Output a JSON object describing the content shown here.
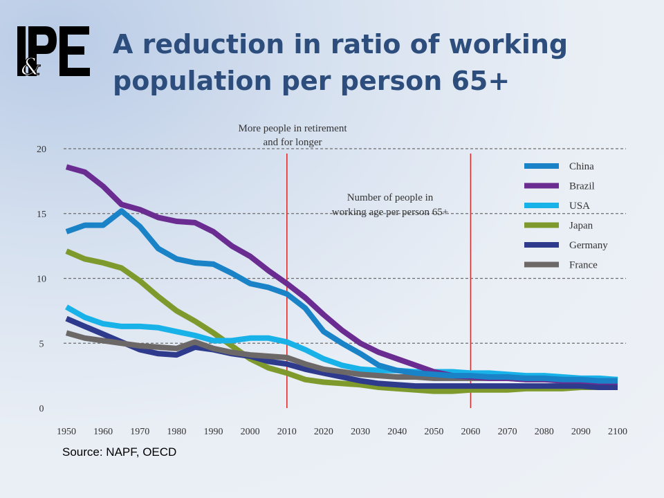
{
  "header": {
    "logo_text": "IPE",
    "logo_amp": "&",
    "title_line1": "A reduction in ratio of working",
    "title_line2": "population per person 65+"
  },
  "footer": {
    "source": "Source: NAPF, OECD"
  },
  "chart_data": {
    "type": "line",
    "x": [
      1950,
      1955,
      1960,
      1965,
      1970,
      1975,
      1980,
      1985,
      1990,
      1995,
      2000,
      2005,
      2010,
      2015,
      2020,
      2025,
      2030,
      2035,
      2040,
      2045,
      2050,
      2055,
      2060,
      2065,
      2070,
      2075,
      2080,
      2085,
      2090,
      2095,
      2100
    ],
    "x_ticks": [
      1950,
      1960,
      1970,
      1980,
      1990,
      2000,
      2010,
      2020,
      2030,
      2040,
      2050,
      2060,
      2070,
      2080,
      2090,
      2100
    ],
    "y_ticks": [
      0,
      5,
      10,
      15,
      20
    ],
    "xlim": [
      1950,
      2100
    ],
    "ylim": [
      0,
      20
    ],
    "grid": "horizontal-dashed",
    "legend_position": "right",
    "annotations": [
      {
        "text_line1": "More people in retirement",
        "text_line2": "and for longer"
      },
      {
        "text_line1": "Number of people in",
        "text_line2": "working age per person 65+"
      }
    ],
    "reference_lines": [
      2010,
      2060
    ],
    "reference_color": "#d32f2f",
    "series": [
      {
        "name": "China",
        "color": "#1a82c6",
        "values": [
          13.6,
          14.1,
          14.1,
          15.2,
          14.0,
          12.3,
          11.5,
          11.2,
          11.1,
          10.4,
          9.6,
          9.3,
          8.8,
          7.7,
          5.9,
          5.0,
          4.2,
          3.3,
          2.9,
          2.7,
          2.6,
          2.5,
          2.5,
          2.4,
          2.4,
          2.3,
          2.3,
          2.2,
          2.2,
          2.1,
          2.1
        ]
      },
      {
        "name": "Brazil",
        "color": "#6a2c91",
        "values": [
          18.6,
          18.2,
          17.1,
          15.7,
          15.3,
          14.7,
          14.4,
          14.3,
          13.6,
          12.5,
          11.7,
          10.6,
          9.6,
          8.5,
          7.2,
          6.0,
          5.0,
          4.3,
          3.8,
          3.3,
          2.8,
          2.5,
          2.4,
          2.3,
          2.3,
          2.2,
          2.2,
          2.1,
          2.1,
          2.0,
          2.0
        ]
      },
      {
        "name": "USA",
        "color": "#19b2e8",
        "values": [
          7.8,
          7.0,
          6.5,
          6.3,
          6.3,
          6.2,
          5.9,
          5.6,
          5.2,
          5.2,
          5.4,
          5.4,
          5.1,
          4.5,
          3.8,
          3.3,
          3.0,
          2.9,
          2.9,
          2.8,
          2.8,
          2.8,
          2.7,
          2.7,
          2.6,
          2.5,
          2.5,
          2.4,
          2.3,
          2.3,
          2.2
        ]
      },
      {
        "name": "Japan",
        "color": "#7f9a2c",
        "values": [
          12.1,
          11.5,
          11.2,
          10.8,
          9.8,
          8.6,
          7.5,
          6.7,
          5.8,
          4.8,
          3.8,
          3.1,
          2.7,
          2.2,
          2.0,
          1.9,
          1.8,
          1.6,
          1.5,
          1.4,
          1.3,
          1.3,
          1.4,
          1.4,
          1.4,
          1.5,
          1.5,
          1.5,
          1.6,
          1.6,
          1.6
        ]
      },
      {
        "name": "Germany",
        "color": "#2e3a8c",
        "values": [
          6.9,
          6.3,
          5.7,
          5.1,
          4.5,
          4.2,
          4.1,
          4.7,
          4.5,
          4.2,
          4.0,
          3.6,
          3.4,
          3.0,
          2.7,
          2.4,
          2.1,
          1.9,
          1.8,
          1.7,
          1.7,
          1.7,
          1.7,
          1.7,
          1.7,
          1.7,
          1.7,
          1.7,
          1.7,
          1.6,
          1.6
        ]
      },
      {
        "name": "France",
        "color": "#6d6868",
        "values": [
          5.8,
          5.4,
          5.2,
          5.0,
          4.8,
          4.7,
          4.6,
          5.1,
          4.6,
          4.3,
          4.1,
          4.0,
          3.9,
          3.4,
          3.0,
          2.8,
          2.6,
          2.5,
          2.4,
          2.4,
          2.3,
          2.3,
          2.3,
          2.3,
          2.3,
          2.2,
          2.2,
          2.2,
          2.1,
          2.1,
          2.1
        ]
      }
    ]
  }
}
